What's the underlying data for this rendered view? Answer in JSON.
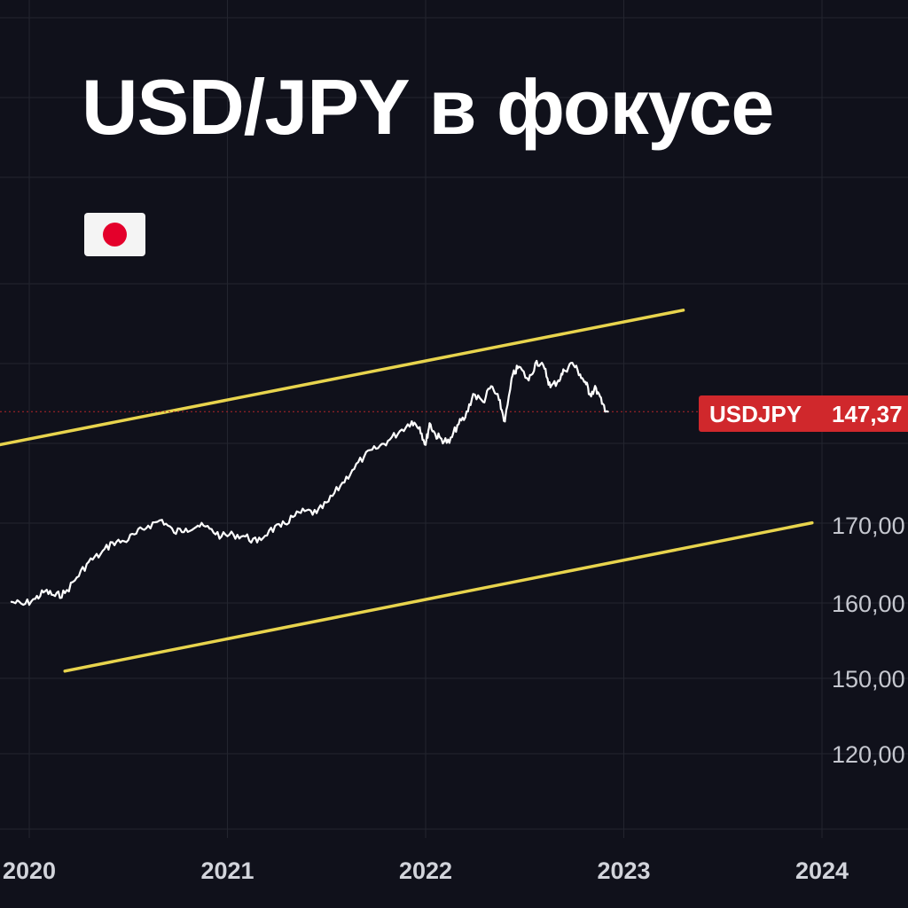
{
  "title": "USD/JPY в фокусе",
  "flag_icon": "japan-flag-icon",
  "colors": {
    "background": "#10111b",
    "grid": "#23252f",
    "price_line": "#ffffff",
    "channel": "#e8d44d",
    "badge": "#d0282c",
    "current_price_line": "#b3262b"
  },
  "current_price": {
    "symbol": "USDJPY",
    "label": "147,37"
  },
  "chart_data": {
    "type": "line",
    "grid": true,
    "x_ticks": [
      "2020",
      "2021",
      "2022",
      "2023",
      "2024"
    ],
    "y_ticks": [
      "120,00",
      "150,00",
      "160,00",
      "170,00"
    ],
    "series": [
      {
        "x": [
          2019.91,
          2019.97,
          2020.03,
          2020.08,
          2020.13,
          2020.18,
          2020.24,
          2020.3,
          2020.36,
          2020.42,
          2020.48,
          2020.54,
          2020.6,
          2020.67,
          2020.73,
          2020.79,
          2020.85,
          2020.91,
          2020.97,
          2021.03,
          2021.09,
          2021.15,
          2021.21,
          2021.27,
          2021.33,
          2021.39,
          2021.45,
          2021.51,
          2021.57,
          2021.63,
          2021.69,
          2021.75,
          2021.81,
          2021.87,
          2021.93,
          2021.97,
          2022.0,
          2022.02,
          2022.05,
          2022.08,
          2022.12,
          2022.16,
          2022.2,
          2022.24,
          2022.29,
          2022.33,
          2022.37,
          2022.4,
          2022.44,
          2022.47,
          2022.52,
          2022.56,
          2022.6,
          2022.63,
          2022.67,
          2022.7,
          2022.74,
          2022.78,
          2022.81,
          2022.83,
          2022.86,
          2022.89,
          2022.92
        ],
        "y": [
          116.5,
          115.0,
          118.0,
          122.0,
          119.5,
          121.0,
          129.0,
          137.0,
          141.0,
          147.0,
          147.5,
          151.5,
          155.5,
          158.5,
          152.0,
          154.0,
          155.5,
          154.0,
          150.0,
          151.0,
          150.0,
          147.0,
          153.0,
          155.0,
          160.0,
          163.0,
          162.0,
          168.0,
          176.0,
          184.0,
          191.0,
          195.0,
          199.0,
          204.0,
          209.0,
          206.0,
          197.0,
          208.0,
          202.0,
          200.0,
          198.0,
          207.0,
          211.0,
          223.0,
          219.0,
          227.0,
          220.0,
          209.0,
          233.0,
          237.0,
          230.0,
          240.0,
          236.0,
          226.5,
          230.0,
          235.0,
          239.0,
          233.0,
          228.0,
          223.0,
          226.0,
          218.0,
          214.0
        ]
      }
    ],
    "annotations": [
      {
        "type": "trend-channel-upper",
        "x": [
          2019.85,
          2023.3
        ],
        "y": [
          197.0,
          266.0
        ]
      },
      {
        "type": "trend-channel-lower",
        "x": [
          2020.18,
          2023.95
        ],
        "y": [
          81.0,
          157.0
        ]
      },
      {
        "type": "current-price-line",
        "y": 214.0
      }
    ]
  }
}
